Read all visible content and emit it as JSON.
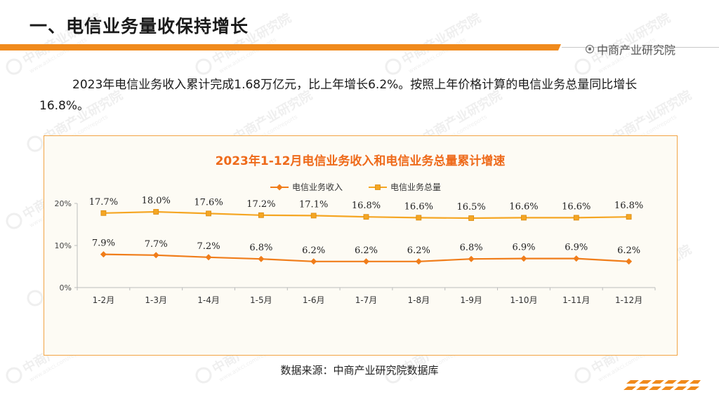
{
  "header": {
    "title": "一、电信业务量收保持增长",
    "brand": "中商产业研究院",
    "accent_color": "#f08a1c"
  },
  "paragraph": "2023年电信业务收入累计完成1.68万亿元，比上年增长6.2%。按照上年价格计算的电信业务总量同比增长16.8%。",
  "watermark": {
    "text_cn": "中商产业研究院",
    "text_en": "www.askci.com/reports"
  },
  "chart_data": {
    "type": "line",
    "title": "2023年1-12月电信业务收入和电信业务总量累计增速",
    "categories": [
      "1-2月",
      "1-3月",
      "1-4月",
      "1-5月",
      "1-6月",
      "1-7月",
      "1-8月",
      "1-9月",
      "1-10月",
      "1-11月",
      "1-12月"
    ],
    "series": [
      {
        "name": "电信业务收入",
        "color": "#f07d1a",
        "marker": "diamond",
        "values": [
          7.9,
          7.7,
          7.2,
          6.8,
          6.2,
          6.2,
          6.2,
          6.8,
          6.9,
          6.9,
          6.2
        ],
        "labels": [
          "7.9%",
          "7.7%",
          "7.2%",
          "6.8%",
          "6.2%",
          "6.2%",
          "6.2%",
          "6.8%",
          "6.9%",
          "6.9%",
          "6.2%"
        ]
      },
      {
        "name": "电信业务总量",
        "color": "#f5a623",
        "marker": "square",
        "values": [
          17.7,
          18.0,
          17.6,
          17.2,
          17.1,
          16.8,
          16.6,
          16.5,
          16.6,
          16.6,
          16.8
        ],
        "labels": [
          "17.7%",
          "18.0%",
          "17.6%",
          "17.2%",
          "17.1%",
          "16.8%",
          "16.6%",
          "16.5%",
          "16.6%",
          "16.6%",
          "16.8%"
        ]
      }
    ],
    "ylim": [
      0,
      20
    ],
    "yticks": [
      0,
      10,
      20
    ],
    "ytick_labels": [
      "0%",
      "10%",
      "20%"
    ],
    "grid": false,
    "legend_position": "top",
    "xlabel": "",
    "ylabel": ""
  },
  "source": "数据来源：中商产业研究院数据库"
}
